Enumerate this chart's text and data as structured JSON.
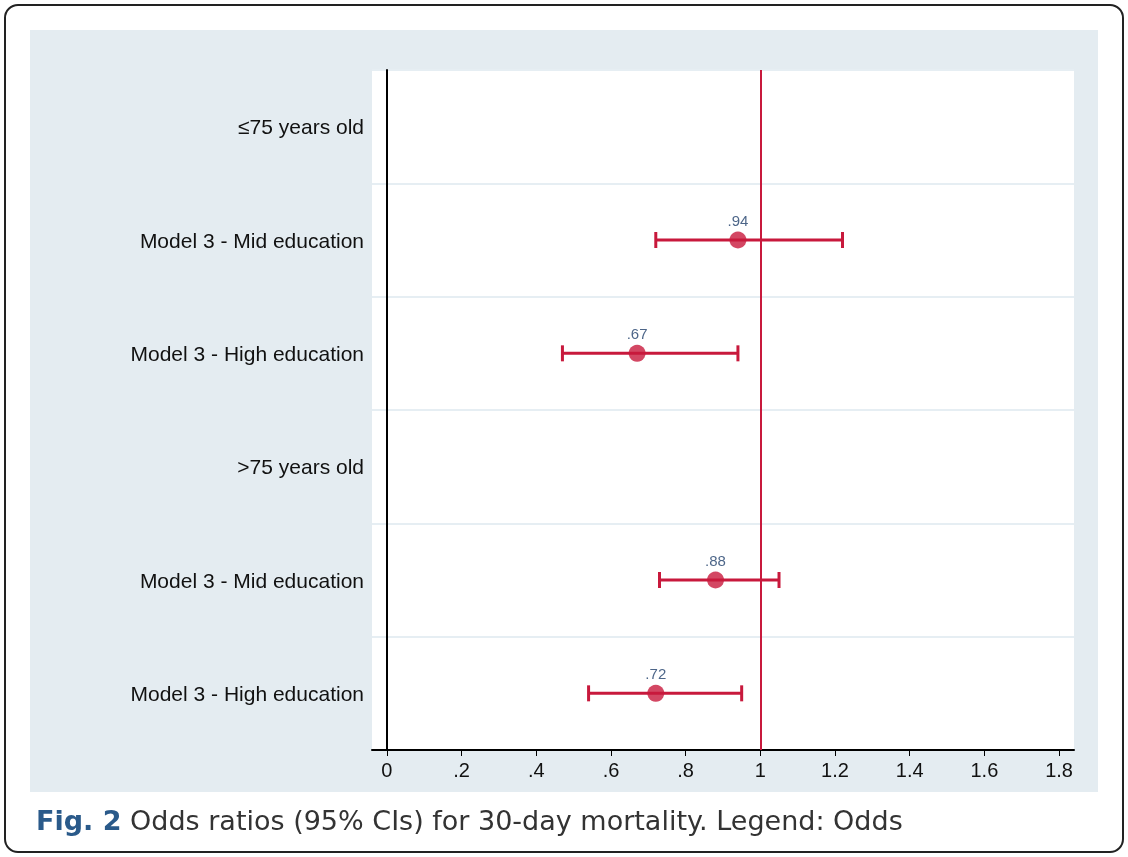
{
  "chart_data": {
    "type": "scatter",
    "orientation": "horizontal",
    "categories": [
      "≤75 years old",
      "Model 3 - Mid education",
      "Model 3 - High education",
      ">75 years old",
      "Model 3 - Mid education",
      "Model 3 - High education"
    ],
    "values": [
      null,
      0.94,
      0.67,
      null,
      0.88,
      0.72
    ],
    "errors": [
      null,
      [
        0.72,
        1.22
      ],
      [
        0.47,
        0.94
      ],
      null,
      [
        0.73,
        1.05
      ],
      [
        0.54,
        0.95
      ]
    ],
    "value_labels": [
      null,
      ".94",
      ".67",
      null,
      ".88",
      ".72"
    ],
    "color": "#c8193c",
    "marker": "circle",
    "xlim": [
      -0.04,
      1.84
    ],
    "xticks": [
      0,
      {
        "value": 0.2,
        "label": ".2"
      },
      {
        "value": 0.4,
        "label": ".4"
      },
      {
        "value": 0.6,
        "label": ".6"
      },
      {
        "value": 0.8,
        "label": ".8"
      },
      1,
      1.2,
      1.4,
      1.6,
      1.8
    ],
    "ref_lines": [
      {
        "axis": "x",
        "value": 1,
        "color": "#c8193c"
      }
    ],
    "grid": "y",
    "annotations": [
      "Fig. 2 Odds ratios (95% CIs) for 30-day mortality. Legend: Odds"
    ]
  }
}
